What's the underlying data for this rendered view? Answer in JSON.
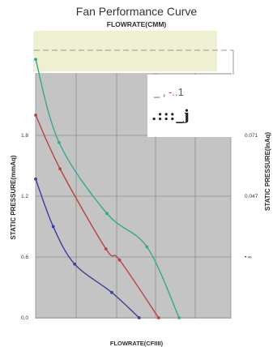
{
  "chart_data": {
    "type": "line",
    "title": "Fan Performance Curve",
    "top_axis_label": "FLOWRATE(CMM)",
    "xlabel": "FLOWRATE(CFIIII)",
    "ylabel_left": "STATIC PRESSURE(mmAq)",
    "ylabel_right": "STATIC PRESSURE(InAq)",
    "left_ticks": [
      "0.0",
      "0.6",
      "1.2",
      "1.8"
    ],
    "right_ticks": [
      "0.071",
      "0.047",
      "• ∞"
    ],
    "ylim": [
      0.0,
      2.4
    ],
    "xlim": [
      0,
      200
    ],
    "grid": true,
    "legend_text": {
      "line1_prefix": "_ , ",
      "line1_red": "-..",
      "line1_suffix": "1",
      "line2": ".:::_j"
    },
    "series": [
      {
        "color": "#3d3d9b",
        "x": [
          0,
          18,
          40,
          78,
          106
        ],
        "y": [
          1.37,
          0.9,
          0.53,
          0.25,
          0.0
        ]
      },
      {
        "color": "#b84242",
        "x": [
          0,
          25,
          72,
          86,
          126
        ],
        "y": [
          2.0,
          1.47,
          0.68,
          0.57,
          0.0
        ]
      },
      {
        "color": "#35a890",
        "x": [
          0,
          24,
          73,
          114,
          147
        ],
        "y": [
          2.55,
          1.73,
          1.03,
          0.7,
          0.0
        ]
      }
    ]
  }
}
